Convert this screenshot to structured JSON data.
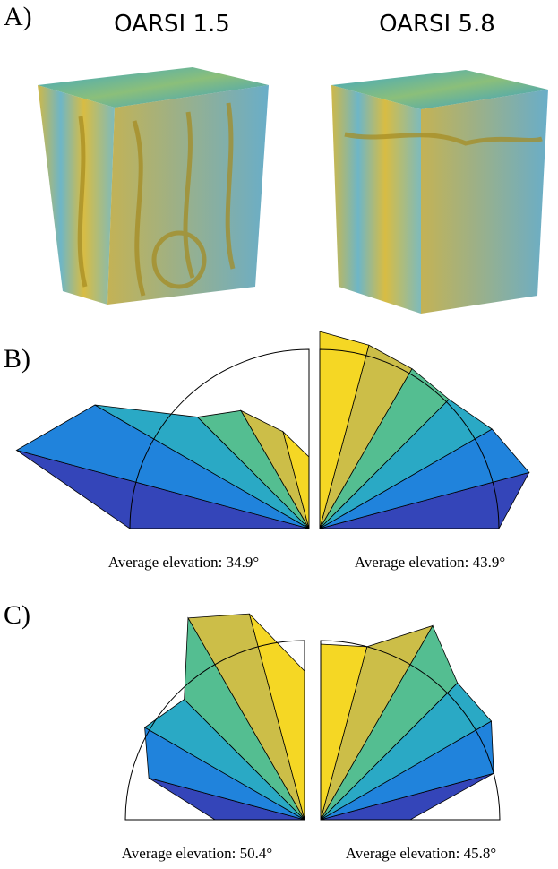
{
  "panel_a": {
    "label": "A)",
    "titles": [
      "OARSI 1.5",
      "OARSI 5.8"
    ]
  },
  "panel_b": {
    "label": "B)",
    "roses": [
      {
        "radii": [
          1.0,
          1.69,
          1.38,
          0.88,
          0.76,
          0.56,
          0.4
        ],
        "caption": "Average elevation: 34.9°"
      },
      {
        "radii": [
          1.0,
          1.21,
          1.11,
          1.02,
          1.03,
          1.06,
          1.1
        ],
        "caption": "Average elevation: 43.9°"
      }
    ]
  },
  "panel_c": {
    "label": "C)",
    "roses": [
      {
        "radii": [
          0.5,
          0.9,
          1.03,
          0.95,
          1.3,
          1.19,
          0.83
        ],
        "caption": "Average elevation: 50.4°"
      },
      {
        "radii": [
          0.5,
          1.0,
          1.1,
          1.08,
          1.25,
          1.0,
          0.98
        ],
        "caption": "Average elevation: 45.8°"
      }
    ]
  }
}
